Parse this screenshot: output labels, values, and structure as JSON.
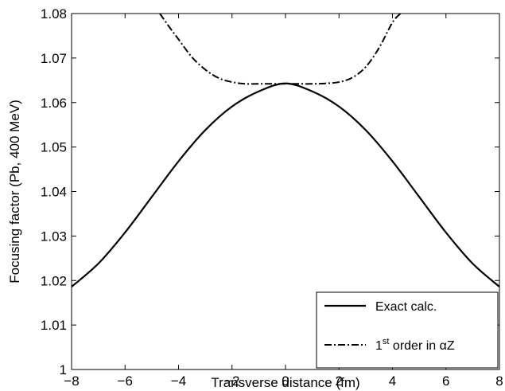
{
  "chart_data": {
    "type": "line",
    "xlabel": "Transverse distance (fm)",
    "ylabel": "Focusing factor (Pb, 400 MeV)",
    "xlim": [
      -8,
      8
    ],
    "ylim": [
      1.0,
      1.08
    ],
    "xticks": [
      -8,
      -6,
      -4,
      -2,
      0,
      2,
      4,
      6,
      8
    ],
    "yticks": [
      1,
      1.01,
      1.02,
      1.03,
      1.04,
      1.05,
      1.06,
      1.07,
      1.08
    ],
    "xtick_labels": [
      "−8",
      "−6",
      "−4",
      "−2",
      "0",
      "2",
      "4",
      "6",
      "8"
    ],
    "ytick_labels": [
      "1",
      "1.01",
      "1.02",
      "1.03",
      "1.04",
      "1.05",
      "1.06",
      "1.07",
      "1.08"
    ],
    "grid": false,
    "legend_position": "bottom-right",
    "series": [
      {
        "name": "Exact calc.",
        "style": "solid",
        "color": "#000000",
        "x": [
          -8,
          -7,
          -6,
          -5,
          -4,
          -3,
          -2,
          -1,
          0,
          1,
          2,
          3,
          4,
          5,
          6,
          7,
          8
        ],
        "y": [
          1.0186,
          1.0238,
          1.0308,
          1.0388,
          1.0468,
          1.0538,
          1.0591,
          1.0625,
          1.0643,
          1.0625,
          1.0591,
          1.0538,
          1.0468,
          1.0388,
          1.0308,
          1.0238,
          1.0186
        ]
      },
      {
        "name": "1st order in αZ",
        "name_parts": {
          "lead": "1",
          "sup": "st",
          "rest": " order in αZ"
        },
        "style": "dashdot",
        "color": "#000000",
        "x": [
          -4.7,
          -4.3,
          -4.0,
          -3.5,
          -3.0,
          -2.5,
          -2.0,
          -1.5,
          -1.0,
          -0.5,
          0,
          0.5,
          1.0,
          1.5,
          2.0,
          2.5,
          3.0,
          3.5,
          4.0,
          4.3
        ],
        "y": [
          1.08,
          1.0766,
          1.0742,
          1.0702,
          1.0674,
          1.0655,
          1.0646,
          1.0642,
          1.0642,
          1.0642,
          1.0642,
          1.0642,
          1.0642,
          1.0643,
          1.0646,
          1.0656,
          1.068,
          1.0723,
          1.078,
          1.08
        ]
      }
    ]
  }
}
